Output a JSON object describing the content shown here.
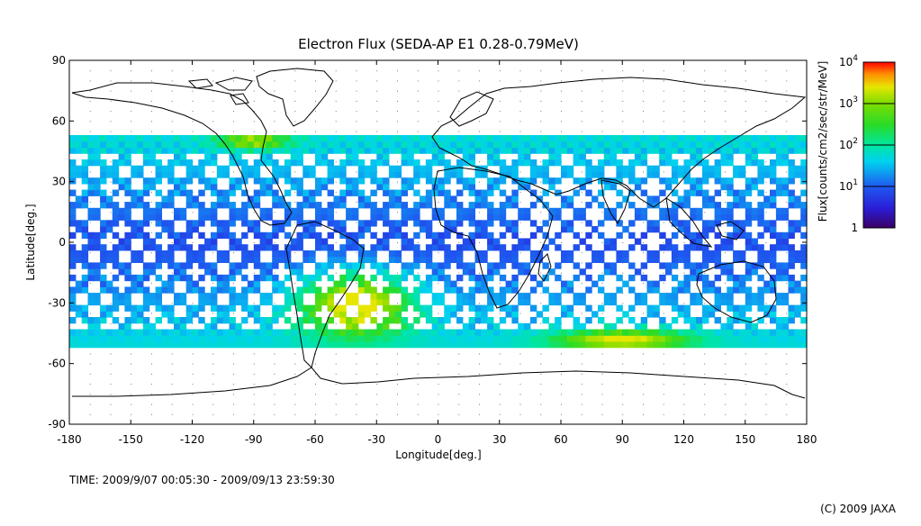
{
  "chart_data": {
    "type": "heatmap",
    "title": "Electron Flux (SEDA-AP E1 0.28-0.79MeV)",
    "xlabel": "Longitude[deg.]",
    "ylabel": "Latitude[deg.]",
    "xlim": [
      -180,
      180
    ],
    "ylim": [
      -90,
      90
    ],
    "x_ticks": [
      "-180",
      "-150",
      "-120",
      "-90",
      "-60",
      "-30",
      "0",
      "30",
      "60",
      "90",
      "120",
      "150",
      "180"
    ],
    "y_ticks": [
      "90",
      "60",
      "30",
      "0",
      "-30",
      "-60",
      "-90"
    ],
    "grid": true,
    "coverage_lat_range": [
      -52,
      52
    ],
    "colorbar": {
      "label": "Flux[counts/cm2/sec/str/MeV]",
      "scale": "log",
      "range": [
        1,
        10000
      ],
      "ticks": [
        "1",
        "10",
        "10",
        "10",
        "10"
      ],
      "tick_exponents": [
        "",
        "1",
        "2",
        "3",
        "4"
      ]
    },
    "high_flux_regions": [
      {
        "name": "South Atlantic Anomaly",
        "lon": -40,
        "lat": -30,
        "level": "~10^2–10^3"
      },
      {
        "name": "Southern auroral zone",
        "lon": 90,
        "lat": -48,
        "level": "~10^2–10^3"
      },
      {
        "name": "Northern auroral zone",
        "lon": -90,
        "lat": 50,
        "level": "~10^2"
      }
    ],
    "background_level": "~10^1"
  },
  "footer": {
    "time": "TIME: 2009/9/07  00:05:30 - 2009/09/13 23:59:30",
    "credit": "(C) 2009 JAXA"
  },
  "colors": {
    "low": "#1e3cf0",
    "mid": "#00e6e6",
    "high": "#32dc00",
    "peak": "#dcdc00",
    "coast": "#000000"
  }
}
